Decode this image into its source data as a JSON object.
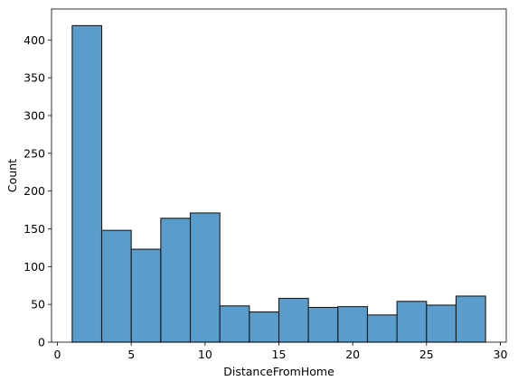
{
  "chart_data": {
    "type": "bar",
    "xlabel": "DistanceFromHome",
    "ylabel": "Count",
    "bar_color": "#5a9dcc",
    "edge_color": "#1a1a1a",
    "xlim": [
      -0.4,
      30.4
    ],
    "ylim": [
      0,
      441
    ],
    "xticks": [
      0,
      5,
      10,
      15,
      20,
      25,
      30
    ],
    "yticks": [
      0,
      50,
      100,
      150,
      200,
      250,
      300,
      350,
      400
    ],
    "bins": [
      {
        "x0": 1,
        "x1": 3,
        "count": 419
      },
      {
        "x0": 3,
        "x1": 5,
        "count": 148
      },
      {
        "x0": 5,
        "x1": 7,
        "count": 123
      },
      {
        "x0": 7,
        "x1": 9,
        "count": 164
      },
      {
        "x0": 9,
        "x1": 11,
        "count": 171
      },
      {
        "x0": 11,
        "x1": 13,
        "count": 48
      },
      {
        "x0": 13,
        "x1": 15,
        "count": 40
      },
      {
        "x0": 15,
        "x1": 17,
        "count": 58
      },
      {
        "x0": 17,
        "x1": 19,
        "count": 46
      },
      {
        "x0": 19,
        "x1": 21,
        "count": 47
      },
      {
        "x0": 21,
        "x1": 23,
        "count": 36
      },
      {
        "x0": 23,
        "x1": 25,
        "count": 54
      },
      {
        "x0": 25,
        "x1": 27,
        "count": 49
      },
      {
        "x0": 27,
        "x1": 29,
        "count": 61
      }
    ]
  }
}
